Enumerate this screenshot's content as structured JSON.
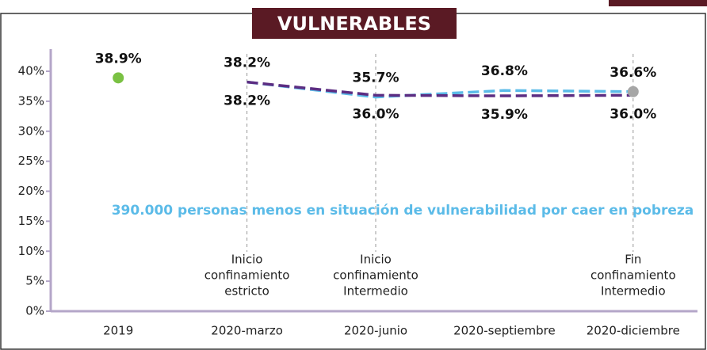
{
  "chart_data": {
    "type": "line",
    "title": "VULNERABLES",
    "categories": [
      "2019",
      "2020-marzo",
      "2020-junio",
      "2020-septiembre",
      "2020-diciembre"
    ],
    "series": [
      {
        "color": "#7ac143",
        "marker": "dot",
        "values": [
          38.9,
          null,
          null,
          null,
          null
        ],
        "value_labels": [
          "38.9%",
          null,
          null,
          null,
          null
        ],
        "label_position": "above"
      },
      {
        "color": "#5bbbe8",
        "dash": true,
        "values": [
          null,
          38.2,
          35.7,
          36.8,
          36.6
        ],
        "value_labels": [
          null,
          "38.2%",
          "35.7%",
          "36.8%",
          "36.6%"
        ],
        "label_position": "above"
      },
      {
        "color": "#5c2d82",
        "dash": true,
        "values": [
          null,
          38.2,
          36.0,
          35.9,
          36.0
        ],
        "value_labels": [
          null,
          "38.2%",
          "36.0%",
          "35.9%",
          "36.0%"
        ],
        "label_position": "below"
      }
    ],
    "end_marker_color": "#a6a6a6",
    "ylim": [
      0,
      40
    ],
    "yticks": [
      {
        "value": 0,
        "label": "0%"
      },
      {
        "value": 5,
        "label": "5%"
      },
      {
        "value": 10,
        "label": "10%"
      },
      {
        "value": 15,
        "label": "15%"
      },
      {
        "value": 20,
        "label": "20%"
      },
      {
        "value": 25,
        "label": "25%"
      },
      {
        "value": 30,
        "label": "30%"
      },
      {
        "value": 35,
        "label": "35%"
      },
      {
        "value": 40,
        "label": "40%"
      }
    ],
    "annotation": "390.000 personas menos en situación de vulnerabilidad por caer en pobreza",
    "event_lines": [
      {
        "x": "2020-marzo",
        "lines": [
          "Inicio",
          "confinamiento",
          "estricto"
        ]
      },
      {
        "x": "2020-junio",
        "lines": [
          "Inicio",
          "confinamiento",
          "Intermedio"
        ]
      },
      {
        "x": "2020-diciembre",
        "lines": [
          "Fin",
          "confinamiento",
          "Intermedio"
        ]
      }
    ]
  }
}
